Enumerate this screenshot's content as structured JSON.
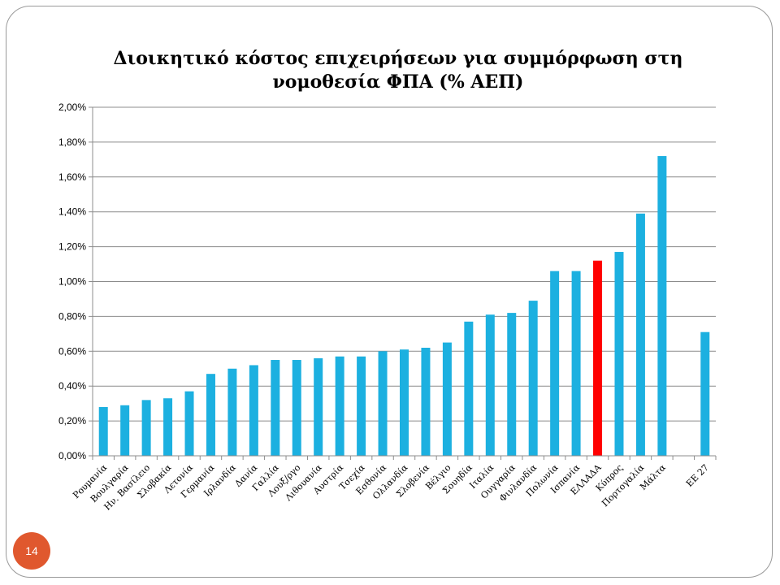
{
  "slide": {
    "page_number": "14"
  },
  "colors": {
    "bar": "#1cb0e0",
    "highlight_bar": "#ff0000",
    "grid": "#8c8c8c",
    "badge": "#e0582e"
  },
  "chart_data": {
    "type": "bar",
    "title_line1": "Διοικητικό κόστος επιχειρήσεων για συμμόρφωση στη",
    "title_line2": "νομοθεσία ΦΠΑ (% ΑΕΠ)",
    "xlabel": "",
    "ylabel": "",
    "ylim": [
      0,
      2.0
    ],
    "y_ticks": [
      "0,00%",
      "0,20%",
      "0,40%",
      "0,60%",
      "0,80%",
      "1,00%",
      "1,20%",
      "1,40%",
      "1,60%",
      "1,80%",
      "2,00%"
    ],
    "grid": true,
    "legend": "none",
    "categories": [
      "Ρουμανία",
      "Βουλγαρία",
      "Ην. Βασίλειο",
      "Σλοβακία",
      "Λετονία",
      "Γερμανία",
      "Ιρλανδία",
      "Δανία",
      "Γαλλία",
      "Λουξ/ργο",
      "Λιθουανία",
      "Αυστρία",
      "Τσεχία",
      "Εσθονία",
      "Ολλανδία",
      "Σλοβενία",
      "Βέλγιο",
      "Σουηδία",
      "Ιταλία",
      "Ουγγαρία",
      "Φινλανδία",
      "Πολωνία",
      "Ισπανία",
      "ΕΛΛΑΔΑ",
      "Κύπρος",
      "Πορτογαλία",
      "Μάλτα",
      "",
      "ΕΕ 27"
    ],
    "values": [
      0.28,
      0.29,
      0.32,
      0.33,
      0.37,
      0.47,
      0.5,
      0.52,
      0.55,
      0.55,
      0.56,
      0.57,
      0.57,
      0.6,
      0.61,
      0.62,
      0.65,
      0.77,
      0.81,
      0.82,
      0.89,
      1.06,
      1.06,
      1.12,
      1.17,
      1.39,
      1.72,
      null,
      0.71
    ],
    "highlight_category": "ΕΛΛΑΔΑ"
  }
}
